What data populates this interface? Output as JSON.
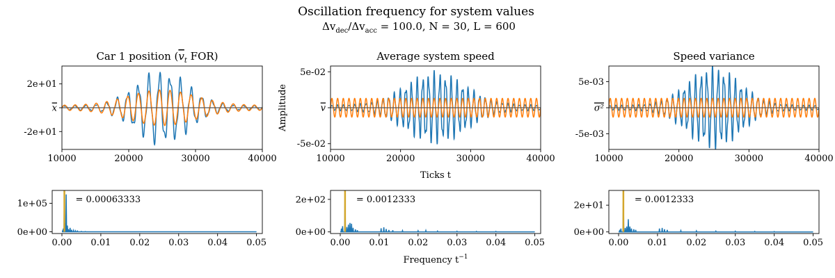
{
  "figure": {
    "title_line1": "Oscillation frequency for system values",
    "title_line2": "Δv_dec/Δv_acc = 100.0, N = 30, L = 600",
    "title_line2_prefix": "Δv",
    "title_line2_sub1": "dec",
    "title_line2_mid": "/Δv",
    "title_line2_sub2": "acc",
    "title_line2_suffix": " = 100.0, N = 30, L = 600",
    "time_xlabel": "Ticks t",
    "amp_ylabel": "Amplitude",
    "freq_xlabel_base": "Frequency t",
    "freq_xlabel_sup": "−1"
  },
  "colors": {
    "blue": "#1f77b4",
    "orange": "#ff7f0e",
    "gold": "#d4a72c",
    "mean_line": "#555555"
  },
  "chart_data": [
    {
      "type": "line",
      "title_prefix": "Car 1 position (",
      "title_math": "v",
      "title_sub": "t",
      "title_suffix": " FOR)",
      "xlim": [
        10000,
        40000
      ],
      "ylim": [
        -35,
        35
      ],
      "xticks": [
        10000,
        20000,
        30000,
        40000
      ],
      "xtick_labels": [
        "10000",
        "20000",
        "30000",
        "40000"
      ],
      "yticks": [
        20,
        0,
        -20
      ],
      "ytick_labels": [
        "2e+01",
        "x",
        "-2e+01"
      ],
      "ytick_overline": [
        false,
        true,
        false
      ],
      "series": [
        {
          "role": "signal",
          "x_start": 10000,
          "x_end": 40000,
          "amplitude_peak": 33,
          "amplitude_base": 2,
          "period": 1579,
          "envelope_center": 25000,
          "envelope_width": 5500
        },
        {
          "role": "fit",
          "x_start": 10000,
          "x_end": 40000,
          "amplitude_peak": 15,
          "amplitude_base": 2,
          "period": 1579,
          "envelope_center": 25000,
          "envelope_width": 7000
        },
        {
          "role": "mean",
          "value": 0
        }
      ]
    },
    {
      "type": "line",
      "title": "Average system speed",
      "xlim": [
        10000,
        40000
      ],
      "ylim": [
        -0.058,
        0.058
      ],
      "xticks": [
        10000,
        20000,
        30000,
        40000
      ],
      "xtick_labels": [
        "10000",
        "20000",
        "30000",
        "40000"
      ],
      "yticks": [
        0.05,
        0,
        -0.05
      ],
      "ytick_labels": [
        "5e-02",
        "v",
        "-5e-02"
      ],
      "ytick_overline": [
        false,
        true,
        false
      ],
      "series": [
        {
          "role": "signal",
          "x_start": 10000,
          "x_end": 40000,
          "amplitude_peak": 0.052,
          "amplitude_base": 0.004,
          "period": 811,
          "envelope_center": 25000,
          "envelope_width": 6000
        },
        {
          "role": "fit",
          "x_start": 10000,
          "x_end": 40000,
          "amplitude_peak": 0.013,
          "amplitude_base": 0.013,
          "period": 811,
          "envelope_center": 25000,
          "envelope_width": 100000
        },
        {
          "role": "mean",
          "value": 0
        }
      ]
    },
    {
      "type": "line",
      "title": "Speed variance",
      "xlim": [
        10000,
        40000
      ],
      "ylim": [
        -0.008,
        0.008
      ],
      "xticks": [
        10000,
        20000,
        30000,
        40000
      ],
      "xtick_labels": [
        "10000",
        "20000",
        "30000",
        "40000"
      ],
      "yticks": [
        0.005,
        0,
        -0.005
      ],
      "ytick_labels": [
        "5e-03",
        "σ²",
        "-5e-03"
      ],
      "ytick_overline": [
        false,
        true,
        false
      ],
      "series": [
        {
          "role": "signal",
          "x_start": 10000,
          "x_end": 40000,
          "amplitude_peak": 0.0082,
          "amplitude_base": 0.0005,
          "period": 811,
          "envelope_center": 25000,
          "envelope_width": 5200
        },
        {
          "role": "fit",
          "x_start": 10000,
          "x_end": 40000,
          "amplitude_peak": 0.0018,
          "amplitude_base": 0.0018,
          "period": 811,
          "envelope_center": 25000,
          "envelope_width": 100000
        },
        {
          "role": "mean",
          "value": 0
        }
      ]
    },
    {
      "type": "line",
      "subtype": "spectrum",
      "xlim": [
        -0.0025,
        0.0515
      ],
      "ylim": [
        -6000,
        145000
      ],
      "xticks": [
        0.0,
        0.01,
        0.02,
        0.03,
        0.04,
        0.05
      ],
      "xtick_labels": [
        "0.00",
        "0.01",
        "0.02",
        "0.03",
        "0.04",
        "0.05"
      ],
      "yticks": [
        100000,
        0
      ],
      "ytick_labels": [
        "1e+05",
        "0e+00"
      ],
      "peak_frequency": 0.00063333,
      "annotation": "= 0.00063333",
      "peaks": [
        [
          0.0002,
          4000
        ],
        [
          0.0004,
          12000
        ],
        [
          0.00063333,
          139000
        ],
        [
          0.0008,
          30000
        ],
        [
          0.0011,
          131000
        ],
        [
          0.0014,
          22000
        ],
        [
          0.0017,
          9000
        ],
        [
          0.0021,
          14000
        ],
        [
          0.0025,
          7000
        ],
        [
          0.003,
          5000
        ],
        [
          0.0035,
          3500
        ],
        [
          0.004,
          2500
        ],
        [
          0.005,
          1500
        ],
        [
          0.006,
          1000
        ]
      ]
    },
    {
      "type": "line",
      "subtype": "spectrum",
      "xlim": [
        -0.0025,
        0.0515
      ],
      "ylim": [
        -10,
        255
      ],
      "xticks": [
        0.0,
        0.01,
        0.02,
        0.03,
        0.04,
        0.05
      ],
      "xtick_labels": [
        "0.00",
        "0.01",
        "0.02",
        "0.03",
        "0.04",
        "0.05"
      ],
      "yticks": [
        200,
        0
      ],
      "ytick_labels": [
        "2e+02",
        "0e+00"
      ],
      "peak_frequency": 0.0012333,
      "annotation": "= 0.0012333",
      "peaks": [
        [
          0.0003,
          20
        ],
        [
          0.0006,
          35
        ],
        [
          0.0012333,
          250
        ],
        [
          0.0017,
          30
        ],
        [
          0.0021,
          45
        ],
        [
          0.0025,
          55
        ],
        [
          0.0029,
          50
        ],
        [
          0.0033,
          25
        ],
        [
          0.0039,
          15
        ],
        [
          0.0044,
          10
        ],
        [
          0.0105,
          22
        ],
        [
          0.0112,
          28
        ],
        [
          0.0118,
          18
        ],
        [
          0.0125,
          12
        ],
        [
          0.0135,
          10
        ],
        [
          0.016,
          8
        ],
        [
          0.02,
          7
        ],
        [
          0.022,
          9
        ],
        [
          0.025,
          5
        ],
        [
          0.03,
          4
        ],
        [
          0.035,
          3
        ],
        [
          0.04,
          3
        ]
      ]
    },
    {
      "type": "line",
      "subtype": "spectrum",
      "xlim": [
        -0.0025,
        0.0515
      ],
      "ylim": [
        -1.2,
        31
      ],
      "xticks": [
        0.0,
        0.01,
        0.02,
        0.03,
        0.04,
        0.05
      ],
      "xtick_labels": [
        "0.00",
        "0.01",
        "0.02",
        "0.03",
        "0.04",
        "0.05"
      ],
      "yticks": [
        20,
        0
      ],
      "ytick_labels": [
        "2e+01",
        "0e+00"
      ],
      "peak_frequency": 0.0012333,
      "annotation": "= 0.0012333",
      "peaks": [
        [
          0.0003,
          1.5
        ],
        [
          0.0006,
          2.5
        ],
        [
          0.0012333,
          30.5
        ],
        [
          0.0017,
          3
        ],
        [
          0.0021,
          4
        ],
        [
          0.0025,
          9.5
        ],
        [
          0.0029,
          4
        ],
        [
          0.0033,
          2.5
        ],
        [
          0.0039,
          2
        ],
        [
          0.0044,
          1.5
        ],
        [
          0.0105,
          2.5
        ],
        [
          0.0112,
          3
        ],
        [
          0.0118,
          2
        ],
        [
          0.0125,
          1.5
        ],
        [
          0.016,
          1
        ],
        [
          0.02,
          0.8
        ],
        [
          0.025,
          0.6
        ],
        [
          0.03,
          0.5
        ],
        [
          0.035,
          0.4
        ],
        [
          0.04,
          0.3
        ]
      ]
    }
  ]
}
